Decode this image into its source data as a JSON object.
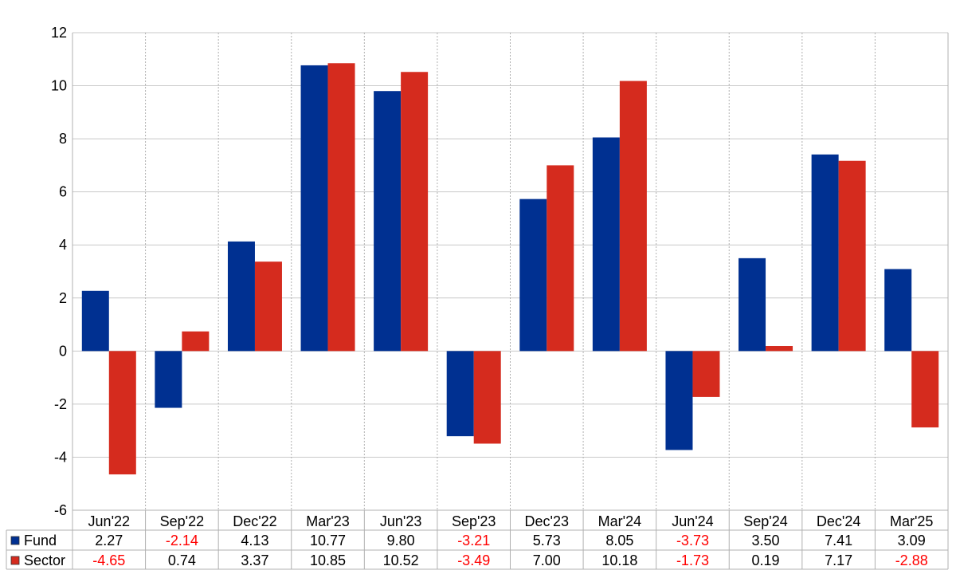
{
  "chart_data": {
    "type": "bar",
    "categories": [
      "Jun'22",
      "Sep'22",
      "Dec'22",
      "Mar'23",
      "Jun'23",
      "Sep'23",
      "Dec'23",
      "Mar'24",
      "Jun'24",
      "Sep'24",
      "Dec'24",
      "Mar'25"
    ],
    "series": [
      {
        "name": "Fund",
        "color": "#003091",
        "values": [
          2.27,
          -2.14,
          4.13,
          10.77,
          9.8,
          -3.21,
          5.73,
          8.05,
          -3.73,
          3.5,
          7.41,
          3.09
        ],
        "labels": [
          "2.27",
          "-2.14",
          "4.13",
          "10.77",
          "9.80",
          "-3.21",
          "5.73",
          "8.05",
          "-3.73",
          "3.50",
          "7.41",
          "3.09"
        ]
      },
      {
        "name": "Sector",
        "color": "#d52b1e",
        "values": [
          -4.65,
          0.74,
          3.37,
          10.85,
          10.52,
          -3.49,
          7.0,
          10.18,
          -1.73,
          0.19,
          7.17,
          -2.88
        ],
        "labels": [
          "-4.65",
          "0.74",
          "3.37",
          "10.85",
          "10.52",
          "-3.49",
          "7.00",
          "10.18",
          "-1.73",
          "0.19",
          "7.17",
          "-2.88"
        ]
      }
    ],
    "ylim": [
      -6,
      12
    ],
    "yticks": [
      -6,
      -4,
      -2,
      0,
      2,
      4,
      6,
      8,
      10,
      12
    ],
    "ytick_labels": [
      "-6",
      "-4",
      "-2",
      "0",
      "2",
      "4",
      "6",
      "8",
      "10",
      "12"
    ],
    "grid": true,
    "legend": "data table below chart",
    "negative_color": "#ff0000",
    "title": "",
    "xlabel": "",
    "ylabel": ""
  }
}
